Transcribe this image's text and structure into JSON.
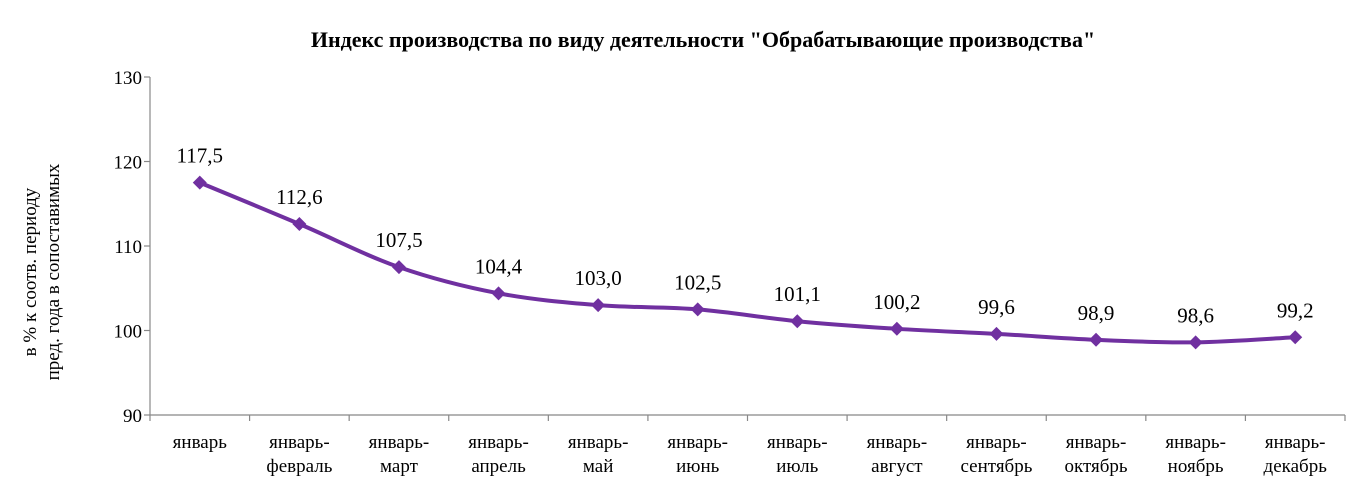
{
  "chart_data": {
    "type": "line",
    "title": "Индекс производства по виду деятельности \"Обрабатывающие производства\"",
    "ylabel_lines": [
      "в % к соотв. периоду",
      "пред. года в сопоставимых"
    ],
    "xlabel": "",
    "ylim": [
      90,
      130
    ],
    "yticks": [
      "90",
      "100",
      "110",
      "120",
      "130"
    ],
    "categories": [
      [
        "январь"
      ],
      [
        "январь-",
        "февраль"
      ],
      [
        "январь-",
        "март"
      ],
      [
        "январь-",
        "апрель"
      ],
      [
        "январь-",
        "май"
      ],
      [
        "январь-",
        "июнь"
      ],
      [
        "январь-",
        "июль"
      ],
      [
        "январь-",
        "август"
      ],
      [
        "январь-",
        "сентябрь"
      ],
      [
        "январь-",
        "октябрь"
      ],
      [
        "январь-",
        "ноябрь"
      ],
      [
        "январь-",
        "декабрь"
      ]
    ],
    "series": [
      {
        "values": [
          117.5,
          112.6,
          107.5,
          104.4,
          103.0,
          102.5,
          101.1,
          100.2,
          99.6,
          98.9,
          98.6,
          99.2
        ],
        "labels": [
          "117,5",
          "112,6",
          "107,5",
          "104,4",
          "103,0",
          "102,5",
          "101,1",
          "100,2",
          "99,6",
          "98,9",
          "98,6",
          "99,2"
        ],
        "color": "#7030a0"
      }
    ],
    "grid": false,
    "legend": "none"
  }
}
